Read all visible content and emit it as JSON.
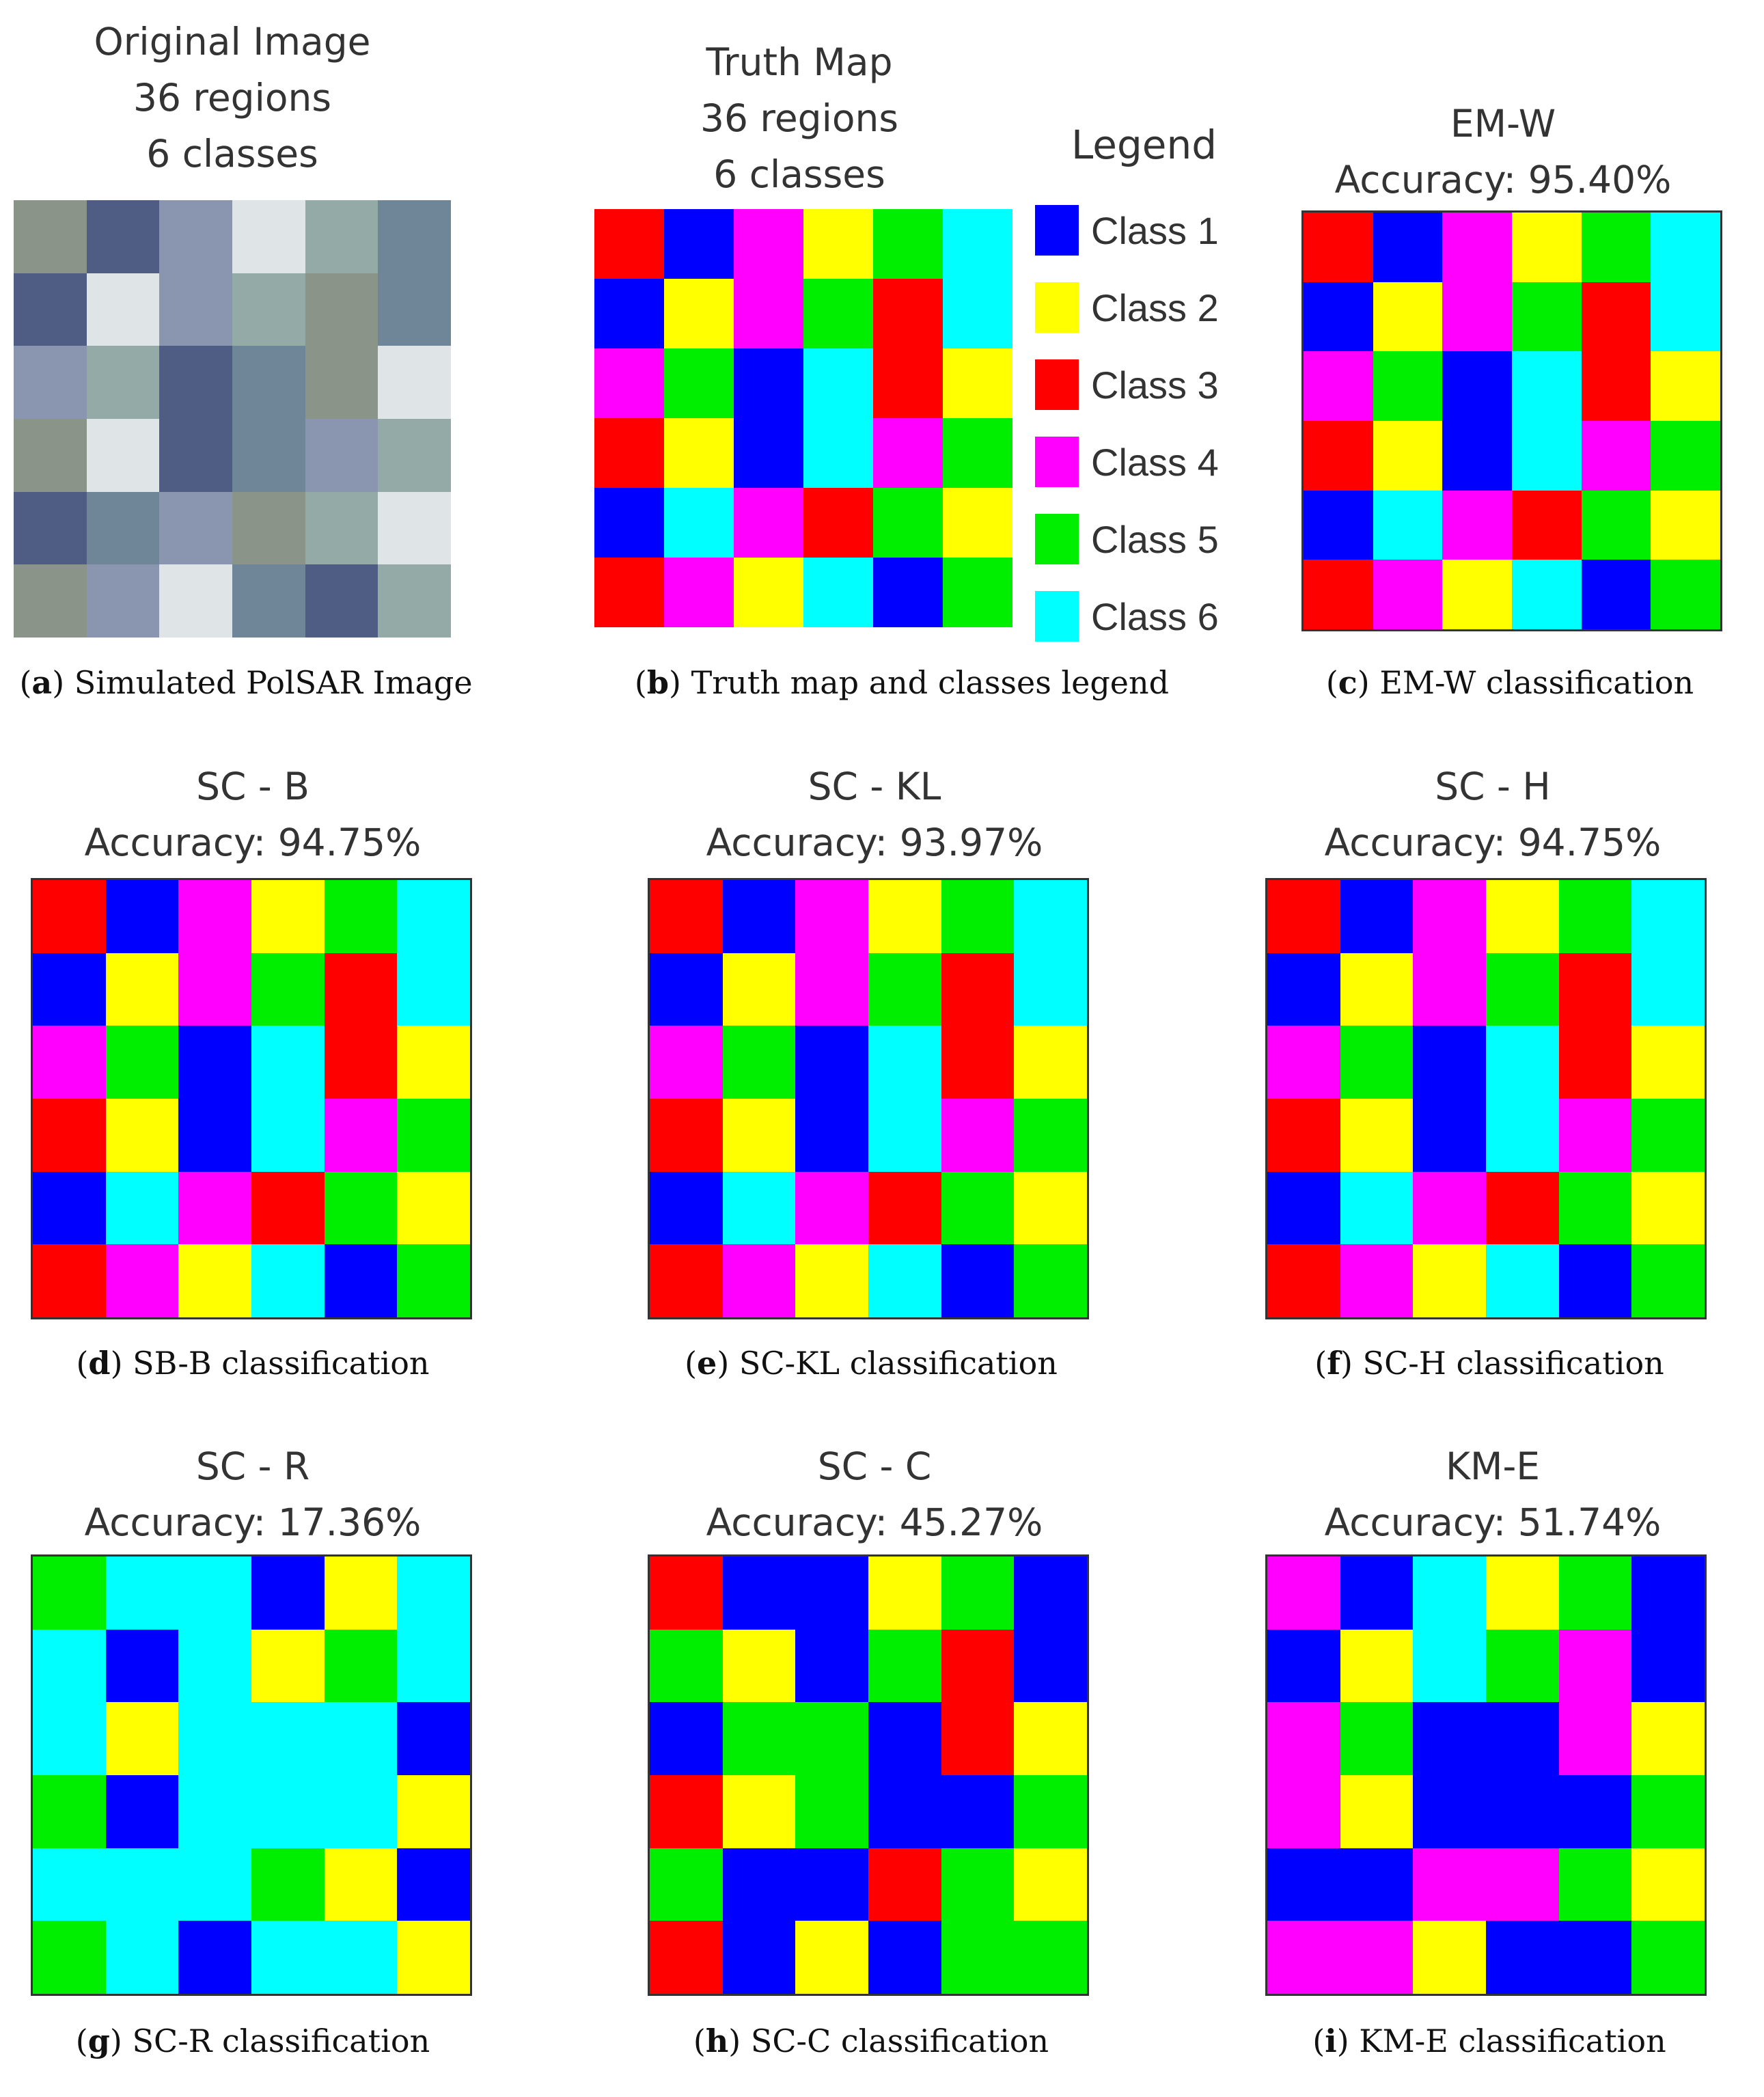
{
  "palette": {
    "1": "#0000ff",
    "2": "#ffff00",
    "3": "#ff0000",
    "4": "#ff00ff",
    "5": "#00ee00",
    "6": "#00ffff"
  },
  "original_palette": {
    "1": "#4f5d84",
    "2": "#dfe5e6",
    "3": "#8b9488",
    "4": "#8a96b0",
    "5": "#94aaa6",
    "6": "#6f8698"
  },
  "truth_map": [
    [
      3,
      1,
      4,
      2,
      5,
      6
    ],
    [
      1,
      2,
      4,
      5,
      3,
      6
    ],
    [
      4,
      5,
      1,
      6,
      3,
      2
    ],
    [
      3,
      2,
      1,
      6,
      4,
      5
    ],
    [
      1,
      6,
      4,
      3,
      5,
      2
    ],
    [
      3,
      4,
      2,
      6,
      1,
      5
    ]
  ],
  "scr_map": [
    [
      5,
      6,
      6,
      1,
      2,
      6
    ],
    [
      6,
      1,
      6,
      2,
      5,
      6
    ],
    [
      6,
      2,
      6,
      6,
      6,
      1
    ],
    [
      5,
      1,
      6,
      6,
      6,
      2
    ],
    [
      6,
      6,
      6,
      5,
      2,
      1
    ],
    [
      5,
      6,
      1,
      6,
      6,
      2
    ]
  ],
  "scc_map": [
    [
      3,
      1,
      1,
      2,
      5,
      1
    ],
    [
      5,
      2,
      1,
      5,
      3,
      1
    ],
    [
      1,
      5,
      5,
      1,
      3,
      2
    ],
    [
      3,
      2,
      5,
      1,
      1,
      5
    ],
    [
      5,
      1,
      1,
      3,
      5,
      2
    ],
    [
      3,
      1,
      2,
      1,
      5,
      5
    ]
  ],
  "kme_map": [
    [
      4,
      1,
      6,
      2,
      5,
      1
    ],
    [
      1,
      2,
      6,
      5,
      4,
      1
    ],
    [
      4,
      5,
      1,
      1,
      4,
      2
    ],
    [
      4,
      2,
      1,
      1,
      1,
      5
    ],
    [
      1,
      1,
      4,
      4,
      5,
      2
    ],
    [
      4,
      4,
      2,
      1,
      1,
      5
    ]
  ],
  "panels": {
    "a": {
      "title": [
        "Original Image",
        "36 regions",
        "6 classes"
      ],
      "caption_letter": "a",
      "caption_text": " Simulated PolSAR Image"
    },
    "b": {
      "title": [
        "Truth Map",
        "36 regions",
        "6 classes"
      ],
      "caption_letter": "b",
      "caption_text": " Truth map and classes legend"
    },
    "c": {
      "title": [
        "EM-W",
        "Accuracy: 95.40%"
      ],
      "caption_letter": "c",
      "caption_text": " EM-W classification"
    },
    "d": {
      "title": [
        "SC - B",
        "Accuracy: 94.75%"
      ],
      "caption_letter": "d",
      "caption_text": " SB-B classification"
    },
    "e": {
      "title": [
        "SC - KL",
        "Accuracy: 93.97%"
      ],
      "caption_letter": "e",
      "caption_text": " SC-KL classification"
    },
    "f": {
      "title": [
        "SC - H",
        "Accuracy: 94.75%"
      ],
      "caption_letter": "f",
      "caption_text": " SC-H classification"
    },
    "g": {
      "title": [
        "SC - R",
        "Accuracy: 17.36%"
      ],
      "caption_letter": "g",
      "caption_text": " SC-R classification"
    },
    "h": {
      "title": [
        "SC - C",
        "Accuracy: 45.27%"
      ],
      "caption_letter": "h",
      "caption_text": " SC-C classification"
    },
    "i": {
      "title": [
        "KM-E",
        "Accuracy: 51.74%"
      ],
      "caption_letter": "i",
      "caption_text": " KM-E classification"
    }
  },
  "legend": {
    "title": "Legend",
    "items": [
      {
        "label": "Class 1",
        "class": 1
      },
      {
        "label": "Class 2",
        "class": 2
      },
      {
        "label": "Class 3",
        "class": 3
      },
      {
        "label": "Class 4",
        "class": 4
      },
      {
        "label": "Class 5",
        "class": 5
      },
      {
        "label": "Class 6",
        "class": 6
      }
    ]
  }
}
